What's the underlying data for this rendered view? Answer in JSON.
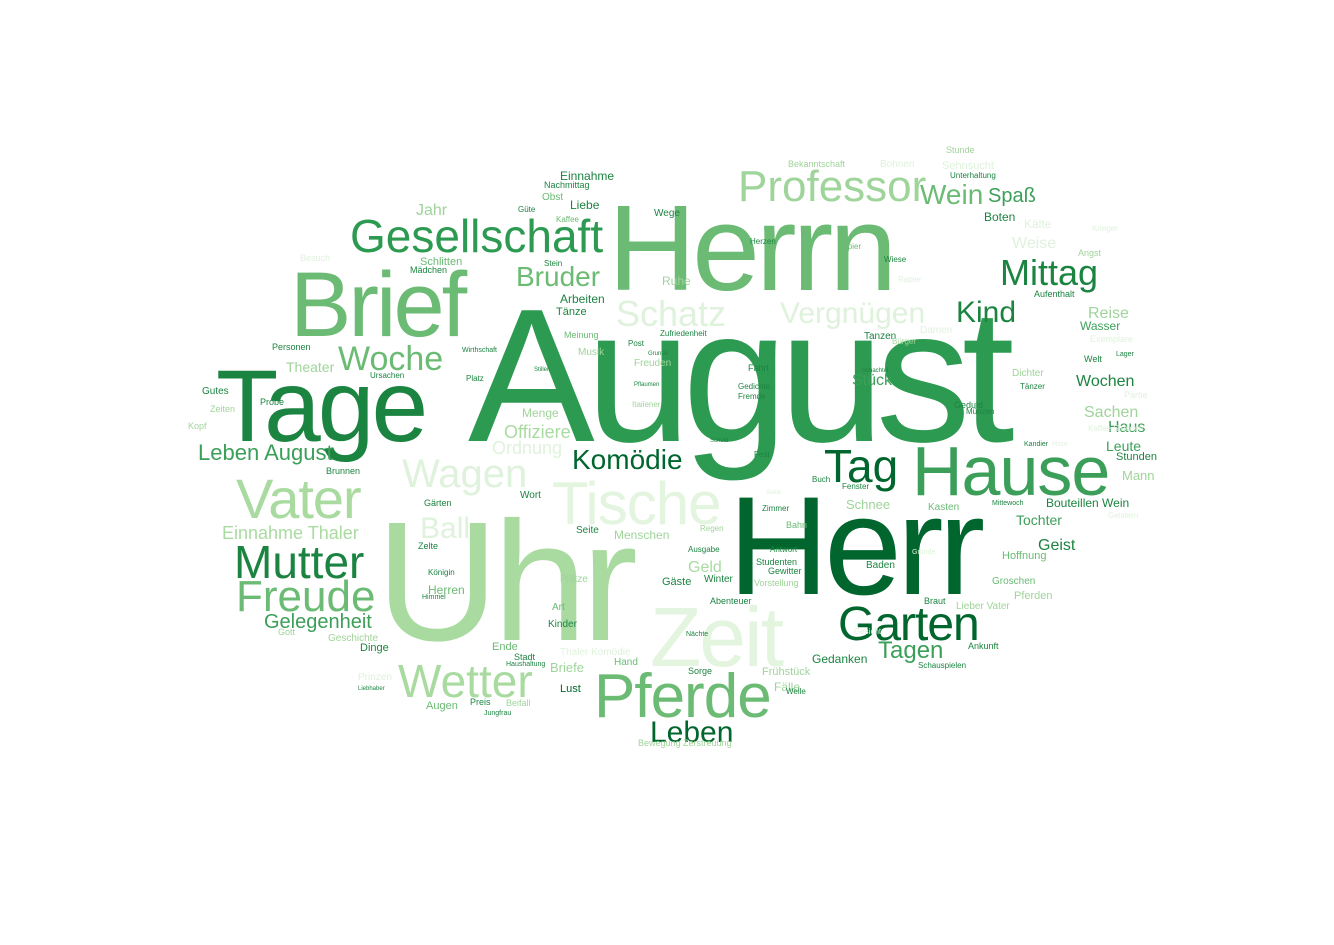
{
  "palette": {
    "darkest": "#00662d",
    "dark": "#1c8441",
    "medium_dark": "#3c9f59",
    "medium": "#6bbb74",
    "light": "#9fd49a",
    "lighter": "#c3e6bf",
    "lightest": "#dff2dc"
  },
  "words": [
    {
      "text": "August",
      "color": "#2d9a51"
    },
    {
      "text": "Uhr",
      "color": "#a9dba1"
    },
    {
      "text": "Herr",
      "color": "#00662d"
    },
    {
      "text": "Herrn",
      "color": "#6bbb74"
    },
    {
      "text": "Tage",
      "color": "#1c8441"
    },
    {
      "text": "Brief",
      "color": "#6bbb74"
    },
    {
      "text": "Hause",
      "color": "#3c9f59"
    },
    {
      "text": "Zeit",
      "color": "#e3f4df"
    },
    {
      "text": "Tische",
      "color": "#e3f4df"
    },
    {
      "text": "Pferde",
      "color": "#6bbb74"
    },
    {
      "text": "Garten",
      "color": "#00662d"
    },
    {
      "text": "Vater",
      "color": "#a9dba1"
    },
    {
      "text": "Gesellschaft",
      "color": "#2d9a51"
    },
    {
      "text": "Professor",
      "color": "#9fd49a"
    },
    {
      "text": "Mutter",
      "color": "#1c8441"
    },
    {
      "text": "Freude",
      "color": "#6bbb74"
    },
    {
      "text": "Wetter",
      "color": "#a9dba1"
    },
    {
      "text": "Wagen",
      "color": "#dff2dc"
    },
    {
      "text": "Tag",
      "color": "#00662d"
    },
    {
      "text": "Mittag",
      "color": "#1c8441"
    },
    {
      "text": "Woche",
      "color": "#6bbb74"
    },
    {
      "text": "Schatz",
      "color": "#dff2dc"
    },
    {
      "text": "Vergnügen",
      "color": "#dff2dc"
    },
    {
      "text": "Leben",
      "color": "#00662d"
    },
    {
      "text": "Bruder",
      "color": "#6bbb74"
    },
    {
      "text": "Wein",
      "color": "#6bbb74"
    },
    {
      "text": "Komödie",
      "color": "#00662d"
    },
    {
      "text": "Kind",
      "color": "#1c8441"
    },
    {
      "text": "Leben August",
      "color": "#3c9f59"
    },
    {
      "text": "Gelegenheit",
      "color": "#3c9f59"
    },
    {
      "text": "Ball",
      "color": "#dff2dc"
    },
    {
      "text": "Tagen",
      "color": "#3c9f59"
    },
    {
      "text": "Einnahme Thaler",
      "color": "#a9dba1"
    },
    {
      "text": "Ordnung",
      "color": "#dff2dc"
    },
    {
      "text": "Offiziere",
      "color": "#a9dba1"
    },
    {
      "text": "Spaß",
      "color": "#3c9f59"
    },
    {
      "text": "Jahr",
      "color": "#9fd49a"
    },
    {
      "text": "Geld",
      "color": "#a9dba1"
    },
    {
      "text": "Stück",
      "color": "#3c9f59"
    },
    {
      "text": "Wochen",
      "color": "#1c8441"
    },
    {
      "text": "Sachen",
      "color": "#9fd49a"
    },
    {
      "text": "Reise",
      "color": "#9fd49a"
    },
    {
      "text": "Haus",
      "color": "#3c9f59"
    },
    {
      "text": "Leute",
      "color": "#3c9f59"
    },
    {
      "text": "Geist",
      "color": "#1c8441"
    },
    {
      "text": "Menge",
      "color": "#9fd49a"
    },
    {
      "text": "Einnahme",
      "color": "#1c8441"
    },
    {
      "text": "Ruhe",
      "color": "#9fd49a"
    },
    {
      "text": "Arbeiten",
      "color": "#1c8441"
    },
    {
      "text": "Tänze",
      "color": "#1c8441"
    },
    {
      "text": "Theater",
      "color": "#9fd49a"
    },
    {
      "text": "Mann",
      "color": "#9fd49a"
    },
    {
      "text": "Tochter",
      "color": "#3c9f59"
    },
    {
      "text": "Bouteillen Wein",
      "color": "#1c8441"
    },
    {
      "text": "Hoffnung",
      "color": "#6bbb74"
    },
    {
      "text": "Boten",
      "color": "#1c8441"
    },
    {
      "text": "Schnee",
      "color": "#9fd49a"
    },
    {
      "text": "Gedanken",
      "color": "#1c8441"
    },
    {
      "text": "Menschen",
      "color": "#9fd49a"
    },
    {
      "text": "Herren",
      "color": "#6bbb74"
    },
    {
      "text": "Briefe",
      "color": "#9fd49a"
    },
    {
      "text": "Augen",
      "color": "#6bbb74"
    },
    {
      "text": "Lust",
      "color": "#00662d"
    },
    {
      "text": "Kinder",
      "color": "#1c8441"
    },
    {
      "text": "Art",
      "color": "#6bbb74"
    },
    {
      "text": "Liebe",
      "color": "#1c8441"
    },
    {
      "text": "Wasser",
      "color": "#3c9f59"
    },
    {
      "text": "Aufenthalt",
      "color": "#1c8441"
    },
    {
      "text": "Seite",
      "color": "#1c8441"
    },
    {
      "text": "Gärten",
      "color": "#1c8441"
    },
    {
      "text": "Wort",
      "color": "#1c8441"
    },
    {
      "text": "Winter",
      "color": "#1c8441"
    },
    {
      "text": "Gäste",
      "color": "#1c8441"
    },
    {
      "text": "Brunnen",
      "color": "#1c8441"
    },
    {
      "text": "Fremde",
      "color": "#1c8441"
    },
    {
      "text": "Kasten",
      "color": "#6bbb74"
    },
    {
      "text": "Gutes",
      "color": "#1c8441"
    },
    {
      "text": "Zeiten",
      "color": "#9fd49a"
    },
    {
      "text": "Kopf",
      "color": "#9fd49a"
    },
    {
      "text": "Probe",
      "color": "#1c8441"
    },
    {
      "text": "Platz",
      "color": "#1c8441"
    },
    {
      "text": "Stunde",
      "color": "#9fd49a"
    },
    {
      "text": "Sehnsucht",
      "color": "#dff2dc"
    },
    {
      "text": "Bohnen",
      "color": "#dff2dc"
    },
    {
      "text": "Nachmittag",
      "color": "#1c8441"
    },
    {
      "text": "Obst",
      "color": "#6bbb74"
    },
    {
      "text": "Güte",
      "color": "#1c8441"
    },
    {
      "text": "Wege",
      "color": "#1c8441"
    },
    {
      "text": "Herzen",
      "color": "#1c8441"
    },
    {
      "text": "Schlitten",
      "color": "#6bbb74"
    },
    {
      "text": "Mädchen",
      "color": "#1c8441"
    },
    {
      "text": "Stein",
      "color": "#1c8441"
    },
    {
      "text": "Meinung",
      "color": "#6bbb74"
    },
    {
      "text": "Zufriedenheit",
      "color": "#1c8441"
    },
    {
      "text": "Musik",
      "color": "#9fd49a"
    },
    {
      "text": "Post",
      "color": "#1c8441"
    },
    {
      "text": "Freuden",
      "color": "#9fd49a"
    },
    {
      "text": "Ursachen",
      "color": "#1c8441"
    },
    {
      "text": "Personen",
      "color": "#1c8441"
    },
    {
      "text": "Fahrt",
      "color": "#1c8441"
    },
    {
      "text": "Gedichte",
      "color": "#1c8441"
    },
    {
      "text": "Fest",
      "color": "#1c8441"
    },
    {
      "text": "Geduld",
      "color": "#1c8441"
    },
    {
      "text": "Münzen",
      "color": "#1c8441"
    },
    {
      "text": "Dichter",
      "color": "#9fd49a"
    },
    {
      "text": "Tänzer",
      "color": "#1c8441"
    },
    {
      "text": "Welt",
      "color": "#1c8441"
    },
    {
      "text": "Lager",
      "color": "#1c8441"
    },
    {
      "text": "Angst",
      "color": "#9fd49a"
    },
    {
      "text": "Stunden",
      "color": "#1c8441"
    },
    {
      "text": "Zimmer",
      "color": "#1c8441"
    },
    {
      "text": "Bahn",
      "color": "#6bbb74"
    },
    {
      "text": "Antwort",
      "color": "#1c8441"
    },
    {
      "text": "Studenten",
      "color": "#1c8441"
    },
    {
      "text": "Gewitter",
      "color": "#1c8441"
    },
    {
      "text": "Baden",
      "color": "#1c8441"
    },
    {
      "text": "Braut",
      "color": "#1c8441"
    },
    {
      "text": "Lieber Vater",
      "color": "#9fd49a"
    },
    {
      "text": "Groschen",
      "color": "#6bbb74"
    },
    {
      "text": "Pferden",
      "color": "#9fd49a"
    },
    {
      "text": "Ankunft",
      "color": "#1c8441"
    },
    {
      "text": "Schauspielen",
      "color": "#1c8441"
    },
    {
      "text": "Abenteuer",
      "color": "#1c8441"
    },
    {
      "text": "Nächte",
      "color": "#1c8441"
    },
    {
      "text": "Sorge",
      "color": "#1c8441"
    },
    {
      "text": "Frühstück",
      "color": "#9fd49a"
    },
    {
      "text": "Fälle",
      "color": "#9fd49a"
    },
    {
      "text": "Welle",
      "color": "#1c8441"
    },
    {
      "text": "Hand",
      "color": "#6bbb74"
    },
    {
      "text": "Stadt",
      "color": "#1c8441"
    },
    {
      "text": "Ende",
      "color": "#6bbb74"
    },
    {
      "text": "Dinge",
      "color": "#1c8441"
    },
    {
      "text": "Geschichte",
      "color": "#9fd49a"
    },
    {
      "text": "Gott",
      "color": "#9fd49a"
    },
    {
      "text": "Preis",
      "color": "#1c8441"
    },
    {
      "text": "Jungfrau",
      "color": "#1c8441"
    },
    {
      "text": "Prinzen",
      "color": "#dff2dc"
    },
    {
      "text": "Plätze",
      "color": "#9fd49a"
    },
    {
      "text": "Zelte",
      "color": "#1c8441"
    },
    {
      "text": "Königin",
      "color": "#1c8441"
    },
    {
      "text": "Regen",
      "color": "#9fd49a"
    },
    {
      "text": "Ausgabe",
      "color": "#1c8441"
    },
    {
      "text": "Vorstellung",
      "color": "#9fd49a"
    },
    {
      "text": "Buch",
      "color": "#1c8441"
    },
    {
      "text": "Fenster",
      "color": "#1c8441"
    },
    {
      "text": "Mittewoch",
      "color": "#1c8441"
    },
    {
      "text": "Kälte",
      "color": "#dff2dc"
    },
    {
      "text": "Weise",
      "color": "#dff2dc"
    },
    {
      "text": "Rapier",
      "color": "#dff2dc"
    },
    {
      "text": "Unterhaltung",
      "color": "#1c8441"
    },
    {
      "text": "Bekanntschaft",
      "color": "#9fd49a"
    },
    {
      "text": "Kaffee",
      "color": "#6bbb74"
    },
    {
      "text": "Papier",
      "color": "#6bbb74"
    },
    {
      "text": "Wiese",
      "color": "#1c8441"
    },
    {
      "text": "Tanzen",
      "color": "#1c8441"
    },
    {
      "text": "Bürger",
      "color": "#9fd49a"
    },
    {
      "text": "Damen",
      "color": "#dff2dc"
    },
    {
      "text": "Exemplare",
      "color": "#dff2dc"
    },
    {
      "text": "Partie",
      "color": "#dff2dc"
    },
    {
      "text": "Besuch",
      "color": "#dff2dc"
    },
    {
      "text": "Itaiiener",
      "color": "#9fd49a"
    },
    {
      "text": "Pflaumen",
      "color": "#1c8441"
    },
    {
      "text": "Grunde",
      "color": "#1c8441"
    },
    {
      "text": "Wirthschaft",
      "color": "#1c8441"
    },
    {
      "text": "Stillen",
      "color": "#1c8441"
    },
    {
      "text": "Schuld",
      "color": "#1c8441"
    },
    {
      "text": "Kandier",
      "color": "#1c8441"
    },
    {
      "text": "Schachtel",
      "color": "#1c8441"
    },
    {
      "text": "Liebhaber",
      "color": "#1c8441"
    },
    {
      "text": "Himmel",
      "color": "#1c8441"
    },
    {
      "text": "Haushaltung",
      "color": "#1c8441"
    },
    {
      "text": "Beifall",
      "color": "#9fd49a"
    },
    {
      "text": "Thaler Komödie",
      "color": "#dff2dc"
    },
    {
      "text": "Bewegung Zerstreuung",
      "color": "#9fd49a"
    },
    {
      "text": "Krieger",
      "color": "#dff2dc"
    },
    {
      "text": "Gesicht",
      "color": "#dff2dc"
    },
    {
      "text": "Kaffee Stunden",
      "color": "#dff2dc"
    },
    {
      "text": "Stelle",
      "color": "#dff2dc"
    },
    {
      "text": "Gründe",
      "color": "#dff2dc"
    },
    {
      "text": "Geistern",
      "color": "#dff2dc"
    },
    {
      "text": "Hitze",
      "color": "#dff2dc"
    }
  ]
}
